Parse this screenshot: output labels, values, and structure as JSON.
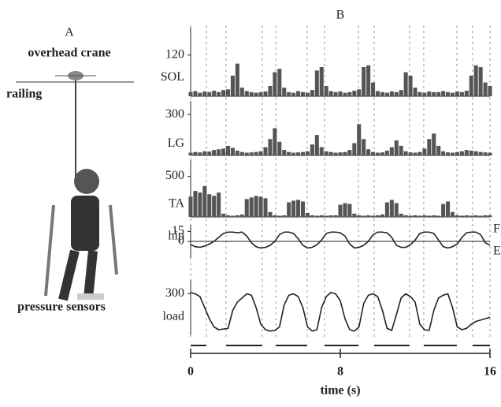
{
  "panel_a": {
    "label": "A",
    "crane": "overhead crane",
    "railing": "railing",
    "sensors": "pressure sensors"
  },
  "chart_data": {
    "type": "multi-panel",
    "title": "B",
    "xlabel": "time (s)",
    "xlim": [
      0,
      16
    ],
    "xticks": [
      0,
      8,
      16
    ],
    "x": [
      0,
      0.25,
      0.5,
      0.75,
      1,
      1.25,
      1.5,
      1.75,
      2,
      2.25,
      2.5,
      2.75,
      3,
      3.25,
      3.5,
      3.75,
      4,
      4.25,
      4.5,
      4.75,
      5,
      5.25,
      5.5,
      5.75,
      6,
      6.25,
      6.5,
      6.75,
      7,
      7.25,
      7.5,
      7.75,
      8,
      8.25,
      8.5,
      8.75,
      9,
      9.25,
      9.5,
      9.75,
      10,
      10.25,
      10.5,
      10.75,
      11,
      11.25,
      11.5,
      11.75,
      12,
      12.25,
      12.5,
      12.75,
      13,
      13.25,
      13.5,
      13.75,
      14,
      14.25,
      14.5,
      14.75,
      15,
      15.25,
      15.5,
      15.75,
      16
    ],
    "stance": [
      [
        0,
        0.84
      ],
      [
        1.89,
        3.83
      ],
      [
        4.55,
        6.23
      ],
      [
        7.16,
        8.97
      ],
      [
        9.81,
        11.7
      ],
      [
        12.46,
        14.23
      ],
      [
        15.07,
        16
      ]
    ],
    "panels": [
      {
        "type": "bar",
        "name": "SOL",
        "color": "#555555",
        "ylim": [
          0,
          200
        ],
        "yticks": [
          120
        ],
        "values": [
          12,
          15,
          10,
          14,
          12,
          16,
          12,
          18,
          20,
          60,
          95,
          25,
          15,
          12,
          10,
          12,
          14,
          30,
          70,
          80,
          25,
          12,
          10,
          15,
          12,
          10,
          18,
          75,
          85,
          30,
          15,
          12,
          14,
          10,
          12,
          16,
          20,
          85,
          90,
          40,
          15,
          12,
          10,
          14,
          12,
          18,
          70,
          60,
          25,
          12,
          10,
          14,
          12,
          12,
          15,
          12,
          10,
          14,
          12,
          16,
          60,
          90,
          85,
          40,
          30
        ]
      },
      {
        "type": "bar",
        "name": "LG",
        "color": "#555555",
        "ylim": [
          0,
          400
        ],
        "yticks": [
          300
        ],
        "values": [
          20,
          25,
          22,
          30,
          28,
          40,
          45,
          50,
          70,
          55,
          35,
          25,
          20,
          22,
          25,
          30,
          60,
          120,
          200,
          100,
          40,
          25,
          20,
          22,
          25,
          30,
          80,
          150,
          60,
          30,
          25,
          20,
          22,
          25,
          40,
          90,
          230,
          120,
          45,
          25,
          20,
          22,
          35,
          60,
          110,
          70,
          30,
          22,
          20,
          25,
          50,
          120,
          160,
          70,
          30,
          22,
          20,
          25,
          30,
          40,
          35,
          30,
          25,
          22,
          20
        ]
      },
      {
        "type": "bar",
        "name": "TA",
        "color": "#555555",
        "ylim": [
          0,
          700
        ],
        "yticks": [
          500
        ],
        "values": [
          250,
          320,
          300,
          380,
          280,
          260,
          300,
          40,
          20,
          15,
          20,
          30,
          220,
          240,
          260,
          250,
          230,
          60,
          20,
          15,
          20,
          180,
          200,
          210,
          190,
          50,
          20,
          15,
          20,
          15,
          20,
          20,
          150,
          170,
          160,
          40,
          20,
          15,
          20,
          15,
          20,
          30,
          180,
          210,
          170,
          40,
          20,
          15,
          20,
          15,
          20,
          15,
          20,
          15,
          160,
          190,
          60,
          20,
          15,
          20,
          15,
          20,
          15,
          20,
          20
        ]
      },
      {
        "type": "line",
        "name": "hip",
        "color": "#222222",
        "ylim": [
          -25,
          25
        ],
        "yticks": [
          0,
          15
        ],
        "annotations": [
          "F",
          "E"
        ],
        "values": [
          -5,
          -8,
          -9,
          -7,
          -4,
          0,
          6,
          12,
          14,
          14,
          13,
          14,
          8,
          -2,
          -8,
          -10,
          -9,
          -6,
          0,
          10,
          14,
          14,
          12,
          4,
          -6,
          -10,
          -9,
          -5,
          2,
          12,
          14,
          14,
          13,
          8,
          -4,
          -10,
          -9,
          -6,
          0,
          10,
          14,
          14,
          13,
          6,
          -6,
          -9,
          -9,
          -5,
          2,
          12,
          14,
          14,
          12,
          2,
          -8,
          -10,
          -8,
          -4,
          6,
          13,
          14,
          14,
          10,
          -2,
          -6
        ]
      },
      {
        "type": "line",
        "name": "load",
        "color": "#222222",
        "ylim": [
          0,
          400
        ],
        "yticks": [
          300
        ],
        "values": [
          310,
          300,
          280,
          200,
          120,
          60,
          40,
          45,
          50,
          180,
          240,
          270,
          300,
          290,
          200,
          80,
          40,
          30,
          35,
          60,
          220,
          290,
          300,
          280,
          200,
          60,
          30,
          40,
          200,
          280,
          310,
          300,
          250,
          120,
          40,
          30,
          60,
          230,
          290,
          300,
          280,
          180,
          50,
          35,
          150,
          270,
          300,
          280,
          240,
          80,
          40,
          35,
          180,
          270,
          290,
          300,
          200,
          60,
          40,
          50,
          80,
          100,
          110,
          120,
          130
        ]
      }
    ]
  }
}
